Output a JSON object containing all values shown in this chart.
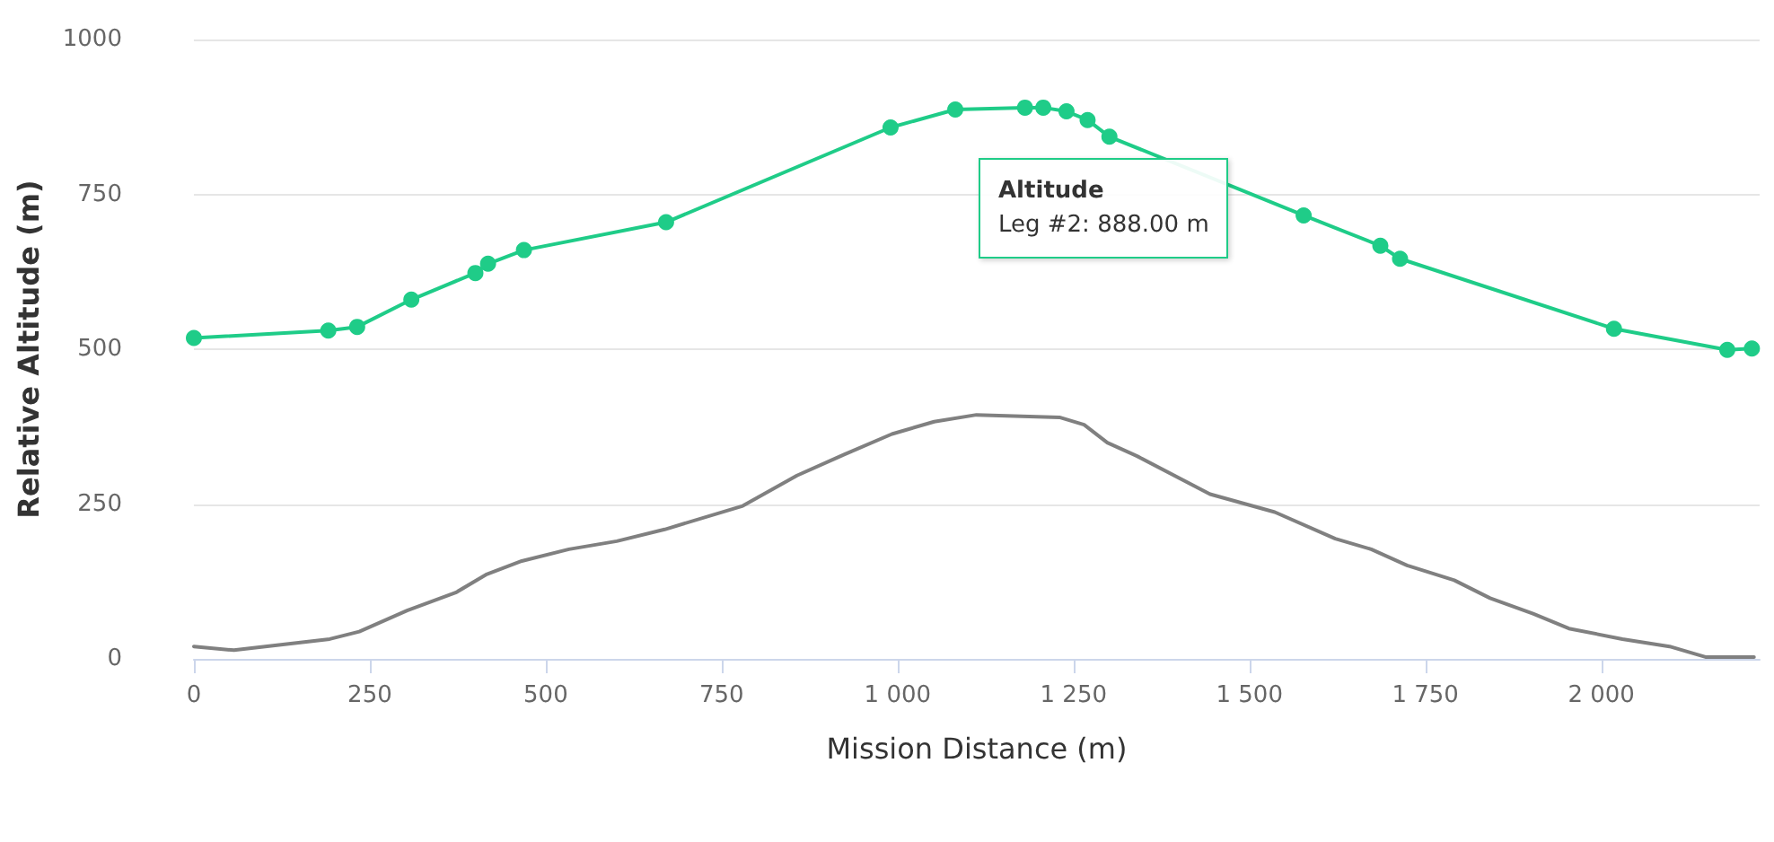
{
  "chart_data": {
    "type": "line",
    "xlabel": "Mission Distance (m)",
    "ylabel": "Relative Altitude (m)",
    "xlim": [
      0,
      2225
    ],
    "xticks": [
      0,
      250,
      500,
      {
        "value": 750,
        "label": "750"
      },
      {
        "value": 1000,
        "label": "1 000"
      },
      {
        "value": 1250,
        "label": "1 250"
      },
      {
        "value": 1500,
        "label": "1 500"
      },
      {
        "value": 1750,
        "label": "1 750"
      },
      {
        "value": 2000,
        "label": "2 000"
      }
    ],
    "ylim": [
      0,
      1000
    ],
    "yticks": [
      0,
      250,
      500,
      750,
      1000
    ],
    "grid": "y",
    "annotations": [
      "Altitude",
      "Leg #2: 888.00 m"
    ],
    "series": [
      {
        "color": "#1fcc88",
        "marker": "circle",
        "x": [
          0,
          191,
          232,
          309,
          400,
          418,
          469,
          671,
          990,
          1082,
          1181,
          1207,
          1240,
          1270,
          1301,
          1577,
          1686,
          1714,
          2018,
          2179,
          2214
        ],
        "values": [
          518,
          530,
          536,
          580,
          623,
          638,
          660,
          705,
          858,
          887,
          890,
          890,
          884,
          870,
          843,
          716,
          667,
          646,
          533,
          499,
          501
        ]
      },
      {
        "color": "#808080",
        "marker": "none",
        "x": [
          0,
          57,
          193,
          235,
          303,
          372,
          415,
          466,
          533,
          601,
          669,
          780,
          857,
          924,
          992,
          1052,
          1112,
          1230,
          1265,
          1298,
          1341,
          1444,
          1536,
          1622,
          1673,
          1724,
          1791,
          1842,
          1903,
          1954,
          2030,
          2097,
          2148,
          2217
        ],
        "values": [
          20,
          14,
          32,
          44,
          78,
          107,
          136,
          158,
          177,
          190,
          209,
          247,
          296,
          330,
          363,
          383,
          394,
          390,
          378,
          349,
          327,
          266,
          237,
          194,
          177,
          151,
          127,
          98,
          73,
          49,
          32,
          20,
          3,
          3
        ]
      }
    ]
  }
}
